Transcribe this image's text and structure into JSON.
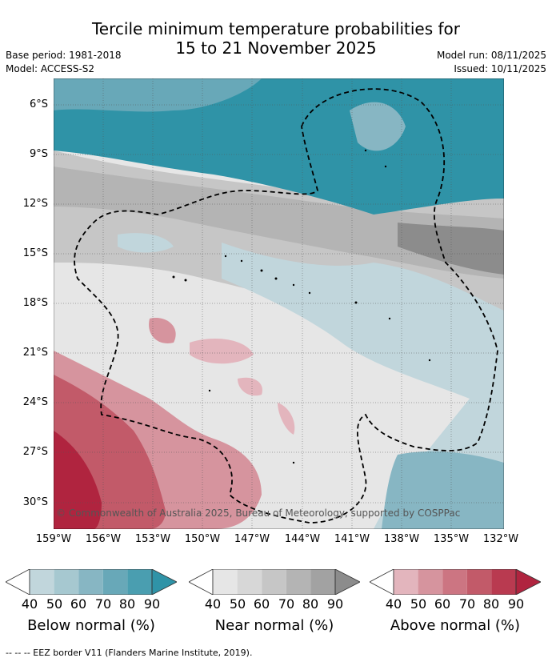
{
  "title": {
    "line1": "Tercile minimum temperature probabilities for",
    "line2": "15 to 21 November 2025"
  },
  "meta": {
    "base_period": "Base period: 1981-2018",
    "model": "Model: ACCESS-S2",
    "model_run": "Model run: 08/11/2025",
    "issued": "Issued: 10/11/2025"
  },
  "map": {
    "y_labels": [
      "6°S",
      "9°S",
      "12°S",
      "15°S",
      "18°S",
      "21°S",
      "24°S",
      "27°S",
      "30°S"
    ],
    "x_labels": [
      "159°W",
      "156°W",
      "153°W",
      "150°W",
      "147°W",
      "144°W",
      "141°W",
      "138°W",
      "135°W",
      "132°W"
    ],
    "copyright": "© Commonwealth of Australia 2025, Bureau of Meteorology, supported by COSPPac"
  },
  "colorbars": [
    {
      "title": "Below normal (%)",
      "ticks": [
        "40",
        "50",
        "60",
        "70",
        "80",
        "90"
      ],
      "colors": [
        "#ffffff",
        "#c1d6dc",
        "#a6c8d0",
        "#87b6c3",
        "#68a8b8",
        "#4a9eb0",
        "#2f93a7"
      ]
    },
    {
      "title": "Near normal (%)",
      "ticks": [
        "40",
        "50",
        "60",
        "70",
        "80",
        "90"
      ],
      "colors": [
        "#ffffff",
        "#e6e6e6",
        "#d7d7d7",
        "#c6c6c6",
        "#b4b4b4",
        "#a2a2a2",
        "#8c8c8c"
      ]
    },
    {
      "title": "Above normal (%)",
      "ticks": [
        "40",
        "50",
        "60",
        "70",
        "80",
        "90"
      ],
      "colors": [
        "#ffffff",
        "#e3b5bd",
        "#d6949e",
        "#cc7582",
        "#c25a69",
        "#b93a50",
        "#b0243f"
      ]
    }
  ],
  "footnote": "--  --  -- EEZ border V11 (Flanders Marine Institute, 2019)."
}
